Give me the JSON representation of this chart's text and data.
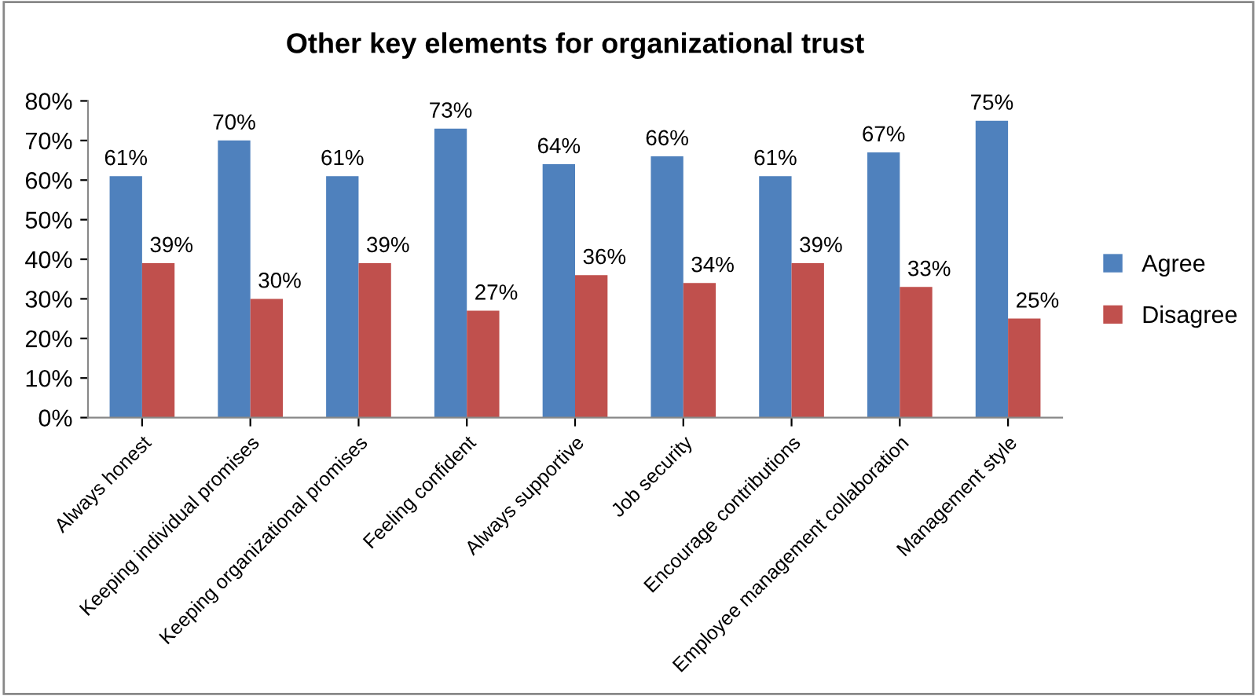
{
  "chart_data": {
    "type": "bar",
    "title": "Other key elements for organizational trust",
    "categories": [
      "Always honest",
      "Keeping individual promises",
      "Keeping organizational promises",
      "Feeling confident",
      "Always supportive",
      "Job security",
      "Encourage contributions",
      "Employee management collaboration",
      "Management style"
    ],
    "series": [
      {
        "name": "Agree",
        "color": "#4f81bd",
        "values": [
          61,
          70,
          61,
          73,
          64,
          66,
          61,
          67,
          75
        ],
        "value_labels": [
          "61%",
          "70%",
          "61%",
          "73%",
          "64%",
          "66%",
          "61%",
          "67%",
          "75%"
        ]
      },
      {
        "name": "Disagree",
        "color": "#c0504d",
        "values": [
          39,
          30,
          39,
          27,
          36,
          34,
          39,
          33,
          25
        ],
        "value_labels": [
          "39%",
          "30%",
          "39%",
          "27%",
          "36%",
          "34%",
          "39%",
          "33%",
          "25%"
        ]
      }
    ],
    "ylim": [
      0,
      80
    ],
    "yticks": [
      {
        "value": 0,
        "label": "0%"
      },
      {
        "value": 10,
        "label": "10%"
      },
      {
        "value": 20,
        "label": "20%"
      },
      {
        "value": 30,
        "label": "30%"
      },
      {
        "value": 40,
        "label": "40%"
      },
      {
        "value": 50,
        "label": "50%"
      },
      {
        "value": 60,
        "label": "60%"
      },
      {
        "value": 70,
        "label": "70%"
      },
      {
        "value": 80,
        "label": "80%"
      }
    ],
    "legend": "right"
  }
}
